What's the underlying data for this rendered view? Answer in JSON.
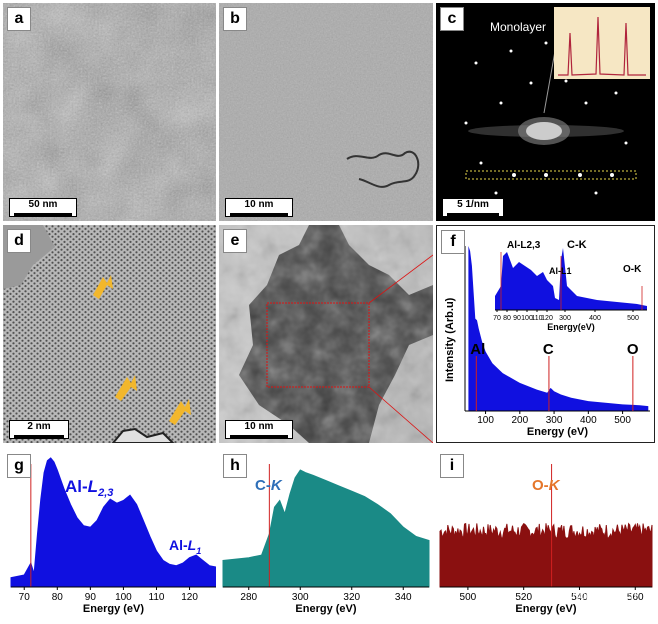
{
  "panels": {
    "a": {
      "label": "a",
      "scale": "50 nm"
    },
    "b": {
      "label": "b",
      "scale": "10 nm"
    },
    "c": {
      "label": "c",
      "scale": "5 1/nm",
      "title": "Monolayer"
    },
    "d": {
      "label": "d",
      "scale": "2 nm"
    },
    "e": {
      "label": "e",
      "scale": "10 nm"
    },
    "f": {
      "label": "f"
    },
    "g": {
      "label": "g"
    },
    "h": {
      "label": "h"
    },
    "i": {
      "label": "i"
    }
  },
  "watermark": "NanoResearch",
  "chart_data": [
    {
      "id": "f-main",
      "type": "area",
      "xlabel": "Energy (eV)",
      "ylabel": "Intensity  (Arb.u)",
      "xticks": [
        "100",
        "200",
        "300",
        "400",
        "500"
      ],
      "xlim": [
        40,
        580
      ],
      "x": [
        50,
        55,
        60,
        65,
        70,
        75,
        80,
        90,
        100,
        120,
        150,
        200,
        250,
        280,
        290,
        300,
        320,
        350,
        400,
        450,
        500,
        550,
        575
      ],
      "y": [
        1.0,
        0.97,
        0.88,
        0.72,
        0.56,
        0.55,
        0.5,
        0.42,
        0.36,
        0.29,
        0.23,
        0.17,
        0.13,
        0.11,
        0.14,
        0.12,
        0.1,
        0.08,
        0.06,
        0.05,
        0.04,
        0.035,
        0.03
      ],
      "markers": [
        {
          "label": "Al",
          "x": 73
        },
        {
          "label": "C",
          "x": 285
        },
        {
          "label": "O",
          "x": 530
        }
      ]
    },
    {
      "id": "f-inset",
      "type": "line",
      "xlabel": "Energy(eV)",
      "xticks": [
        "70",
        "80",
        "90",
        "100",
        "110",
        "120",
        "300",
        "400",
        "500"
      ],
      "annotations": [
        "Al-L2,3",
        "Al-L1",
        "C-K",
        "O-K"
      ]
    },
    {
      "id": "g",
      "type": "area",
      "xlabel": "Energy (eV)",
      "xlim": [
        66,
        128
      ],
      "xticks": [
        "70",
        "80",
        "90",
        "100",
        "110",
        "120"
      ],
      "x": [
        66,
        70,
        72,
        73,
        74,
        75,
        76,
        77,
        78,
        79,
        80,
        82,
        84,
        86,
        88,
        90,
        92,
        94,
        96,
        98,
        100,
        102,
        104,
        106,
        108,
        110,
        112,
        114,
        116,
        118,
        120,
        122,
        124,
        126,
        128
      ],
      "y": [
        0.07,
        0.09,
        0.18,
        0.1,
        0.4,
        0.66,
        0.86,
        0.95,
        0.97,
        0.94,
        0.88,
        0.74,
        0.62,
        0.52,
        0.46,
        0.45,
        0.5,
        0.6,
        0.66,
        0.63,
        0.65,
        0.69,
        0.62,
        0.5,
        0.38,
        0.27,
        0.2,
        0.17,
        0.16,
        0.18,
        0.22,
        0.24,
        0.2,
        0.16,
        0.15
      ],
      "marker_x": 72,
      "annotations": [
        {
          "text": "Al-",
          "italic": "L",
          "sub": "2,3"
        },
        {
          "text": "Al-",
          "italic": "L",
          "sub": "1"
        }
      ]
    },
    {
      "id": "h",
      "type": "area",
      "xlabel": "Energy (eV)",
      "xlim": [
        270,
        350
      ],
      "xticks": [
        "280",
        "300",
        "320",
        "340"
      ],
      "x": [
        270,
        280,
        285,
        288,
        290,
        292,
        294,
        296,
        298,
        300,
        302,
        305,
        310,
        315,
        320,
        325,
        330,
        335,
        340,
        345,
        350
      ],
      "y": [
        0.2,
        0.22,
        0.24,
        0.4,
        0.6,
        0.65,
        0.55,
        0.7,
        0.82,
        0.88,
        0.86,
        0.84,
        0.8,
        0.76,
        0.72,
        0.68,
        0.62,
        0.55,
        0.45,
        0.38,
        0.35
      ],
      "marker_x": 288,
      "annotations": [
        {
          "text": "C-",
          "italic": "K",
          "sub": ""
        }
      ]
    },
    {
      "id": "i",
      "type": "area",
      "xlabel": "Energy (eV)",
      "xlim": [
        490,
        566
      ],
      "xticks": [
        "500",
        "520",
        "540",
        "560"
      ],
      "baseline": 0.42,
      "noise": 0.06,
      "marker_x": 530,
      "annotations": [
        {
          "text": "O-",
          "italic": "K",
          "sub": ""
        }
      ]
    }
  ]
}
